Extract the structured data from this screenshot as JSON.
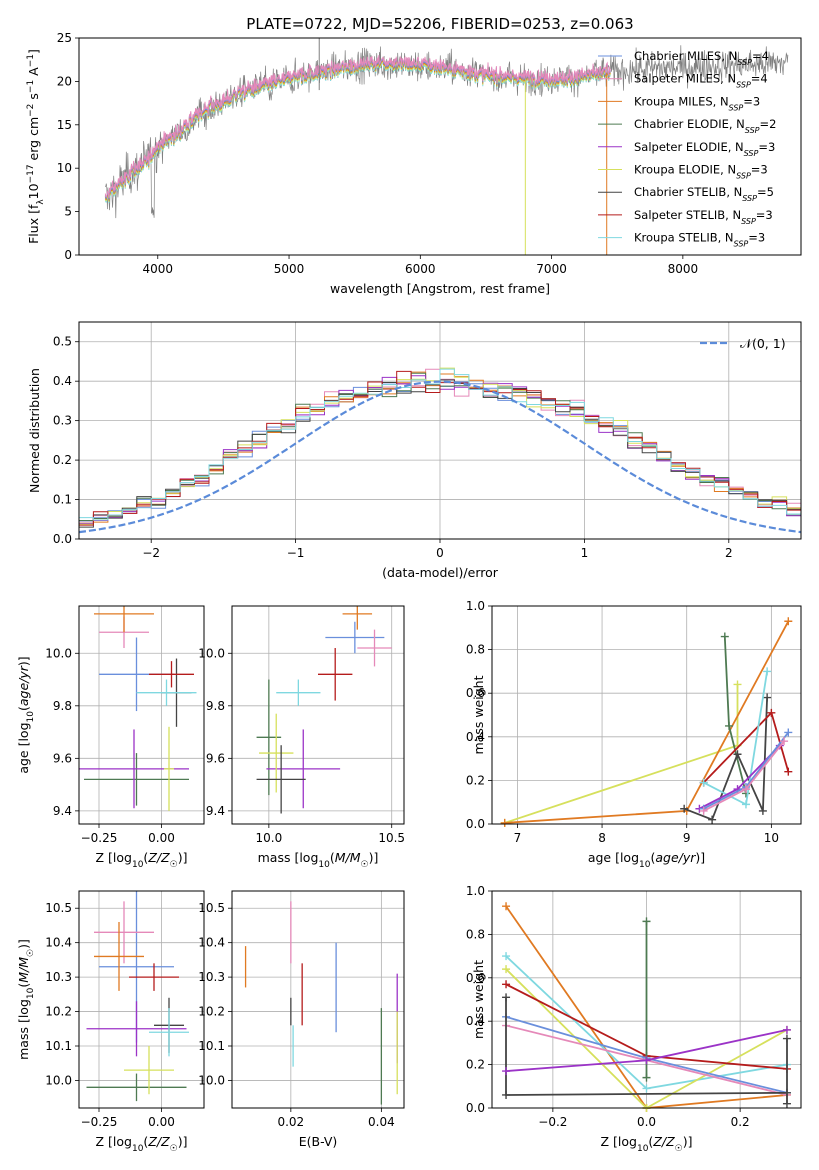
{
  "figure_title": "PLATE=0722, MJD=52206, FIBERID=0253, z=0.063",
  "colors": {
    "Chabrier MILES": "#6a8fdc",
    "Salpeter MILES": "#e589b9",
    "Kroupa MILES": "#e07a22",
    "Chabrier ELODIE": "#4e7a52",
    "Salpeter ELODIE": "#9b33c7",
    "Kroupa ELODIE": "#d6e05c",
    "Chabrier STELIB": "#444444",
    "Salpeter STELIB": "#b51c1c",
    "Kroupa STELIB": "#7fd8e0",
    "data": "#808080",
    "normal": "#5b8bd9"
  },
  "chart_data": [
    {
      "id": "spectrum",
      "type": "line",
      "title": "PLATE=0722, MJD=52206, FIBERID=0253, z=0.063",
      "xlabel": "wavelength [Angstrom, rest frame]",
      "ylabel_parts": [
        "Flux [f",
        "λ",
        "10",
        "−17",
        " erg cm",
        "−2",
        " s",
        "−1",
        " A",
        "−1",
        "]"
      ],
      "xlim": [
        3400,
        8900
      ],
      "ylim": [
        0,
        25
      ],
      "xticks": [
        4000,
        5000,
        6000,
        7000,
        8000
      ],
      "yticks": [
        0,
        5,
        10,
        15,
        20,
        25
      ],
      "grid": false,
      "legend_position": "right",
      "legend": [
        {
          "name": "Chabrier MILES",
          "nssp": "4"
        },
        {
          "name": "Salpeter MILES",
          "nssp": "4"
        },
        {
          "name": "Kroupa MILES",
          "nssp": "3"
        },
        {
          "name": "Chabrier ELODIE",
          "nssp": "2"
        },
        {
          "name": "Salpeter ELODIE",
          "nssp": "3"
        },
        {
          "name": "Kroupa ELODIE",
          "nssp": "3"
        },
        {
          "name": "Chabrier STELIB",
          "nssp": "5"
        },
        {
          "name": "Salpeter STELIB",
          "nssp": "3"
        },
        {
          "name": "Kroupa STELIB",
          "nssp": "3"
        }
      ],
      "continuum": {
        "x": [
          3600,
          3700,
          3800,
          3900,
          4000,
          4100,
          4200,
          4300,
          4400,
          4500,
          4600,
          4800,
          5000,
          5200,
          5400,
          5600,
          5800,
          6000,
          6200,
          6400,
          6600,
          6800,
          7000,
          7200,
          7400,
          7600,
          7800,
          8000,
          8200,
          8400,
          8600,
          8800
        ],
        "y": [
          6.5,
          8,
          9.5,
          10.5,
          12.5,
          13.5,
          14.5,
          16,
          17,
          17.5,
          18.5,
          19.5,
          20.3,
          21,
          21.5,
          22,
          22,
          21.8,
          21.5,
          21,
          20.5,
          20.3,
          20.2,
          20.4,
          21,
          21.3,
          21.5,
          21.6,
          21.8,
          21.9,
          22,
          22.2
        ]
      },
      "data_x_range": [
        3600,
        8800
      ],
      "model_x_range": [
        3600,
        7450
      ]
    },
    {
      "id": "residuals",
      "type": "histogram",
      "xlabel": "(data-model)/error",
      "ylabel": "Normed distribution",
      "xlim": [
        -2.5,
        2.5
      ],
      "ylim": [
        0,
        0.55
      ],
      "xticks": [
        -2,
        -1,
        0,
        1,
        2
      ],
      "yticks": [
        0,
        0.1,
        0.2,
        0.3,
        0.4,
        0.5
      ],
      "grid": true,
      "legend_position": "top-right",
      "reference_curve": "𝒩(0, 1)",
      "bin_width": 0.1,
      "base_hist": [
        0.02,
        0.02,
        0.02,
        0.03,
        0.03,
        0.04,
        0.05,
        0.06,
        0.07,
        0.09,
        0.09,
        0.12,
        0.14,
        0.15,
        0.18,
        0.21,
        0.23,
        0.25,
        0.28,
        0.29,
        0.32,
        0.33,
        0.35,
        0.36,
        0.37,
        0.38,
        0.38,
        0.39,
        0.4,
        0.4,
        0.4,
        0.4,
        0.39,
        0.38,
        0.38,
        0.37,
        0.36,
        0.35,
        0.34,
        0.33,
        0.31,
        0.29,
        0.28,
        0.25,
        0.23,
        0.21,
        0.19,
        0.17,
        0.15,
        0.14,
        0.12,
        0.11,
        0.09,
        0.09,
        0.07,
        0.06,
        0.05,
        0.04,
        0.03,
        0.03
      ]
    },
    {
      "id": "age-vs-Z",
      "type": "errorbar",
      "xlabel": "Z [log₁₀(Z/Z☉)]",
      "ylabel": "age  [log₁₀(age/yr)]",
      "xlim": [
        -0.33,
        0.17
      ],
      "ylim": [
        9.35,
        10.18
      ],
      "xticks": [
        -0.25,
        0,
        0.25
      ],
      "xticklabels": [
        "−0.25",
        "0.00",
        ""
      ],
      "yticks": [
        9.4,
        9.6,
        9.8,
        10.0
      ],
      "grid": true,
      "points": [
        {
          "model": "Chabrier MILES",
          "x": -0.1,
          "xerr": 0.15,
          "y": 9.92,
          "yerr": 0.14
        },
        {
          "model": "Salpeter MILES",
          "x": -0.15,
          "xerr": 0.1,
          "y": 10.08,
          "yerr": 0.06
        },
        {
          "model": "Kroupa MILES",
          "x": -0.15,
          "xerr": 0.12,
          "y": 10.15,
          "yerr": 0.07
        },
        {
          "model": "Chabrier ELODIE",
          "x": -0.1,
          "xerr": 0.21,
          "y": 9.52,
          "yerr": 0.1
        },
        {
          "model": "Salpeter ELODIE",
          "x": -0.11,
          "xerr": 0.22,
          "y": 9.56,
          "yerr": 0.15
        },
        {
          "model": "Kroupa ELODIE",
          "x": 0.03,
          "xerr": 0.02,
          "y": 9.56,
          "yerr": 0.16
        },
        {
          "model": "Chabrier STELIB",
          "x": 0.06,
          "xerr": 0.06,
          "y": 9.85,
          "yerr": 0.13
        },
        {
          "model": "Salpeter STELIB",
          "x": 0.04,
          "xerr": 0.09,
          "y": 9.92,
          "yerr": 0.05
        },
        {
          "model": "Kroupa STELIB",
          "x": 0.02,
          "xerr": 0.12,
          "y": 9.85,
          "yerr": 0.05
        }
      ]
    },
    {
      "id": "age-vs-mass",
      "type": "errorbar",
      "xlabel": "mass [log₁₀(M/M☉)]",
      "ylabel": "",
      "xlim": [
        9.85,
        10.55
      ],
      "ylim": [
        9.35,
        10.18
      ],
      "xticks": [
        10.0,
        10.5
      ],
      "yticks": [
        9.4,
        9.6,
        9.8,
        10.0
      ],
      "grid": true,
      "points": [
        {
          "model": "Chabrier MILES",
          "x": 10.35,
          "xerr": 0.12,
          "y": 10.06,
          "yerr": 0.06
        },
        {
          "model": "Salpeter MILES",
          "x": 10.43,
          "xerr": 0.07,
          "y": 10.02,
          "yerr": 0.07
        },
        {
          "model": "Kroupa MILES",
          "x": 10.36,
          "xerr": 0.06,
          "y": 10.15,
          "yerr": 0.06
        },
        {
          "model": "Chabrier ELODIE",
          "x": 10.0,
          "xerr": 0.05,
          "y": 9.68,
          "yerr": 0.22
        },
        {
          "model": "Salpeter ELODIE",
          "x": 10.14,
          "xerr": 0.15,
          "y": 9.56,
          "yerr": 0.15
        },
        {
          "model": "Kroupa ELODIE",
          "x": 10.03,
          "xerr": 0.07,
          "y": 9.62,
          "yerr": 0.15
        },
        {
          "model": "Chabrier STELIB",
          "x": 10.05,
          "xerr": 0.1,
          "y": 9.52,
          "yerr": 0.13
        },
        {
          "model": "Salpeter STELIB",
          "x": 10.27,
          "xerr": 0.07,
          "y": 9.92,
          "yerr": 0.1
        },
        {
          "model": "Kroupa STELIB",
          "x": 10.12,
          "xerr": 0.09,
          "y": 9.85,
          "yerr": 0.05
        }
      ]
    },
    {
      "id": "weight-vs-age",
      "type": "line",
      "xlabel": "age  [log₁₀(age/yr)]",
      "ylabel": "mass weight",
      "xlim": [
        6.7,
        10.35
      ],
      "ylim": [
        0,
        1.0
      ],
      "xticks": [
        7,
        8,
        9,
        10
      ],
      "yticks": [
        0,
        0.2,
        0.4,
        0.6,
        0.8,
        1.0
      ],
      "grid": true,
      "series": [
        {
          "model": "Kroupa ELODIE",
          "x": [
            6.85,
            9.6,
            9.6
          ],
          "y": [
            0.005,
            0.36,
            0.64
          ]
        },
        {
          "model": "Kroupa MILES",
          "x": [
            6.85,
            9.0,
            10.2
          ],
          "y": [
            0.005,
            0.06,
            0.93
          ]
        },
        {
          "model": "Chabrier ELODIE",
          "x": [
            9.45,
            9.5,
            9.7
          ],
          "y": [
            0.86,
            0.45,
            0.14
          ]
        },
        {
          "model": "Chabrier STELIB",
          "x": [
            8.97,
            9.3,
            9.6,
            9.9,
            9.95
          ],
          "y": [
            0.07,
            0.02,
            0.32,
            0.06,
            0.58
          ]
        },
        {
          "model": "Salpeter STELIB",
          "x": [
            9.2,
            10.0,
            10.2
          ],
          "y": [
            0.19,
            0.51,
            0.24
          ]
        },
        {
          "model": "Kroupa STELIB",
          "x": [
            9.2,
            9.7,
            9.95
          ],
          "y": [
            0.19,
            0.09,
            0.7
          ]
        },
        {
          "model": "Salpeter ELODIE",
          "x": [
            9.15,
            9.6,
            10.1
          ],
          "y": [
            0.07,
            0.16,
            0.36
          ]
        },
        {
          "model": "Chabrier MILES",
          "x": [
            9.2,
            9.7,
            10.2
          ],
          "y": [
            0.07,
            0.17,
            0.42
          ]
        },
        {
          "model": "Salpeter MILES",
          "x": [
            9.2,
            9.7,
            10.15
          ],
          "y": [
            0.06,
            0.16,
            0.38
          ]
        }
      ]
    },
    {
      "id": "mass-vs-Z",
      "type": "errorbar",
      "xlabel": "Z [log₁₀(Z/Z☉)]",
      "ylabel": "mass [log₁₀(M/M☉)]",
      "xlim": [
        -0.33,
        0.17
      ],
      "ylim": [
        9.92,
        10.55
      ],
      "xticks": [
        -0.25,
        0,
        0.25
      ],
      "xticklabels": [
        "−0.25",
        "0.00",
        ""
      ],
      "yticks": [
        10.0,
        10.1,
        10.2,
        10.3,
        10.4,
        10.5
      ],
      "grid": true,
      "points": [
        {
          "model": "Chabrier MILES",
          "x": -0.1,
          "xerr": 0.15,
          "y": 10.33,
          "yerr": 0.22
        },
        {
          "model": "Salpeter MILES",
          "x": -0.15,
          "xerr": 0.12,
          "y": 10.43,
          "yerr": 0.09
        },
        {
          "model": "Kroupa MILES",
          "x": -0.17,
          "xerr": 0.1,
          "y": 10.36,
          "yerr": 0.1
        },
        {
          "model": "Chabrier ELODIE",
          "x": -0.1,
          "xerr": 0.2,
          "y": 9.98,
          "yerr": 0.04
        },
        {
          "model": "Salpeter ELODIE",
          "x": -0.1,
          "xerr": 0.2,
          "y": 10.15,
          "yerr": 0.08
        },
        {
          "model": "Kroupa ELODIE",
          "x": -0.05,
          "xerr": 0.1,
          "y": 10.03,
          "yerr": 0.07
        },
        {
          "model": "Chabrier STELIB",
          "x": 0.03,
          "xerr": 0.06,
          "y": 10.16,
          "yerr": 0.08
        },
        {
          "model": "Salpeter STELIB",
          "x": -0.03,
          "xerr": 0.1,
          "y": 10.3,
          "yerr": 0.04
        },
        {
          "model": "Kroupa STELIB",
          "x": 0.03,
          "xerr": 0.08,
          "y": 10.14,
          "yerr": 0.07
        }
      ]
    },
    {
      "id": "mass-vs-ebv",
      "type": "errorbar",
      "xlabel": "E(B-V)",
      "ylabel": "",
      "xlim": [
        0.007,
        0.045
      ],
      "ylim": [
        9.92,
        10.55
      ],
      "xticks": [
        0.02,
        0.04
      ],
      "xticklabels": [
        "0.02",
        "0.04"
      ],
      "yticks": [
        10.0,
        10.1,
        10.2,
        10.3,
        10.4,
        10.5
      ],
      "grid": true,
      "points": [
        {
          "model": "Kroupa MILES",
          "x": 0.01,
          "xerr": 0,
          "y": 10.33,
          "yerr": 0.06
        },
        {
          "model": "Salpeter MILES",
          "x": 0.02,
          "xerr": 0,
          "y": 10.43,
          "yerr": 0.09
        },
        {
          "model": "Chabrier STELIB",
          "x": 0.02,
          "xerr": 0,
          "y": 10.2,
          "yerr": 0.04
        },
        {
          "model": "Kroupa STELIB",
          "x": 0.0205,
          "xerr": 0,
          "y": 10.1,
          "yerr": 0.06
        },
        {
          "model": "Salpeter STELIB",
          "x": 0.0225,
          "xerr": 0,
          "y": 10.25,
          "yerr": 0.09
        },
        {
          "model": "Chabrier MILES",
          "x": 0.03,
          "xerr": 0,
          "y": 10.27,
          "yerr": 0.13
        },
        {
          "model": "Chabrier ELODIE",
          "x": 0.04,
          "xerr": 0,
          "y": 10.07,
          "yerr": 0.14
        },
        {
          "model": "Salpeter ELODIE",
          "x": 0.0435,
          "xerr": 0,
          "y": 10.18,
          "yerr": 0.13
        },
        {
          "model": "Kroupa ELODIE",
          "x": 0.0435,
          "xerr": 0,
          "y": 10.08,
          "yerr": 0.12
        }
      ]
    },
    {
      "id": "weight-vs-Z",
      "type": "line",
      "xlabel": "Z [log₁₀(Z/Z☉)]",
      "ylabel": "mass weight",
      "xlim": [
        -0.33,
        0.33
      ],
      "ylim": [
        0,
        1.0
      ],
      "xticks": [
        -0.2,
        0,
        0.2
      ],
      "xticklabels": [
        "−0.2",
        "0.0",
        "0.2"
      ],
      "yticks": [
        0,
        0.2,
        0.4,
        0.6,
        0.8,
        1.0
      ],
      "grid": true,
      "series": [
        {
          "model": "Kroupa MILES",
          "x": [
            -0.3,
            0.0,
            0.3
          ],
          "y": [
            0.93,
            0.0,
            0.06
          ]
        },
        {
          "model": "Kroupa STELIB",
          "x": [
            -0.3,
            0.0,
            0.3
          ],
          "y": [
            0.7,
            0.09,
            0.2
          ]
        },
        {
          "model": "Kroupa ELODIE",
          "x": [
            -0.3,
            0.0,
            0.3
          ],
          "y": [
            0.64,
            0.0,
            0.36
          ]
        },
        {
          "model": "Salpeter STELIB",
          "x": [
            -0.3,
            0.0,
            0.3
          ],
          "y": [
            0.57,
            0.24,
            0.18
          ]
        },
        {
          "model": "Chabrier MILES",
          "x": [
            -0.3,
            0.0,
            0.3
          ],
          "y": [
            0.42,
            0.23,
            0.07
          ]
        },
        {
          "model": "Salpeter MILES",
          "x": [
            -0.3,
            0.0,
            0.3
          ],
          "y": [
            0.38,
            0.22,
            0.06
          ]
        },
        {
          "model": "Chabrier ELODIE",
          "x": [
            0.0,
            0.0
          ],
          "y": [
            0.86,
            0.14
          ]
        },
        {
          "model": "Chabrier STELIB",
          "x": [
            -0.3,
            -0.3,
            0.3,
            0.3,
            0.3
          ],
          "y": [
            0.51,
            0.06,
            0.07,
            0.32,
            0.02
          ]
        },
        {
          "model": "Salpeter ELODIE",
          "x": [
            -0.3,
            0.0,
            0.3
          ],
          "y": [
            0.17,
            0.22,
            0.36
          ]
        }
      ]
    }
  ]
}
